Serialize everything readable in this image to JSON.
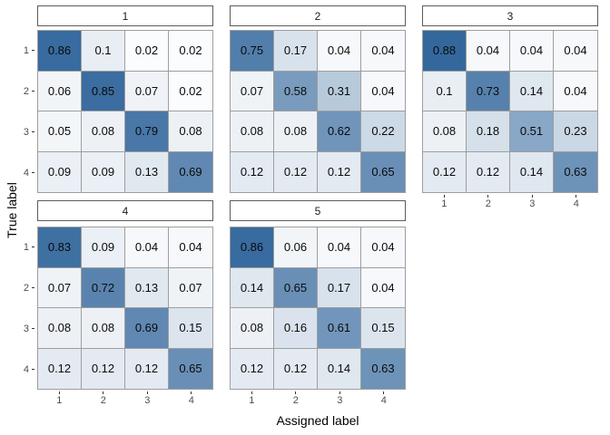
{
  "figure": {
    "x_axis_title": "Assigned label",
    "y_axis_title": "True label",
    "colors": {
      "low": "#FFFFFF",
      "high": "#18538F",
      "tile_border": "#9E9E9E",
      "strip_border": "#5C5C5C",
      "strip_bg": "#FFFFFF",
      "tick_label": "#4D4D4D",
      "tick_mark": "#333333",
      "value_text": "#0A0A0A"
    }
  },
  "chart_data": {
    "type": "heatmap",
    "title": "",
    "x_label": "Assigned label",
    "y_label": "True label",
    "x_categories": [
      "1",
      "2",
      "3",
      "4"
    ],
    "y_categories": [
      "1",
      "2",
      "3",
      "4"
    ],
    "legend": "none",
    "color_scale": {
      "low": "#FFFFFF",
      "high": "#18538F",
      "domain": [
        0,
        1
      ]
    },
    "facets": [
      {
        "label": "1",
        "values": [
          [
            0.86,
            0.1,
            0.02,
            0.02
          ],
          [
            0.06,
            0.85,
            0.07,
            0.02
          ],
          [
            0.05,
            0.08,
            0.79,
            0.08
          ],
          [
            0.09,
            0.09,
            0.13,
            0.69
          ]
        ]
      },
      {
        "label": "2",
        "values": [
          [
            0.75,
            0.17,
            0.04,
            0.04
          ],
          [
            0.07,
            0.58,
            0.31,
            0.04
          ],
          [
            0.08,
            0.08,
            0.62,
            0.22
          ],
          [
            0.12,
            0.12,
            0.12,
            0.65
          ]
        ]
      },
      {
        "label": "3",
        "values": [
          [
            0.88,
            0.04,
            0.04,
            0.04
          ],
          [
            0.1,
            0.73,
            0.14,
            0.04
          ],
          [
            0.08,
            0.18,
            0.51,
            0.23
          ],
          [
            0.12,
            0.12,
            0.14,
            0.63
          ]
        ]
      },
      {
        "label": "4",
        "values": [
          [
            0.83,
            0.09,
            0.04,
            0.04
          ],
          [
            0.07,
            0.72,
            0.13,
            0.07
          ],
          [
            0.08,
            0.08,
            0.69,
            0.15
          ],
          [
            0.12,
            0.12,
            0.12,
            0.65
          ]
        ]
      },
      {
        "label": "5",
        "values": [
          [
            0.86,
            0.06,
            0.04,
            0.04
          ],
          [
            0.14,
            0.65,
            0.17,
            0.04
          ],
          [
            0.08,
            0.16,
            0.61,
            0.15
          ],
          [
            0.12,
            0.12,
            0.14,
            0.63
          ]
        ]
      }
    ]
  }
}
